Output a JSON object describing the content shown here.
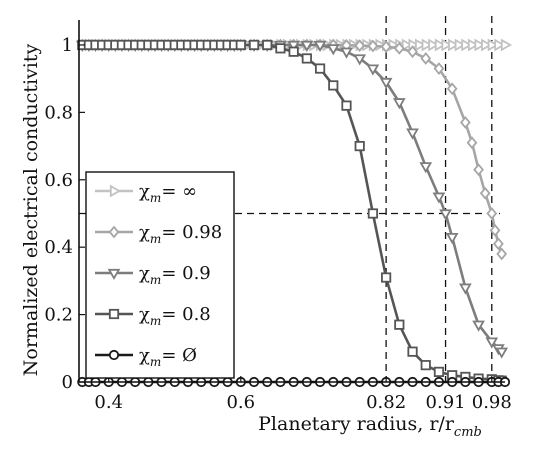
{
  "chart_data": {
    "type": "line",
    "xlabel": "Planetary radius, r/r",
    "xlabel_sub": "cmb",
    "ylabel": "Normalized electrical conductivity",
    "xlim": [
      0.355,
      1.0
    ],
    "ylim": [
      0,
      1.08
    ],
    "x_ticks": [
      {
        "value": 0.4,
        "label": "0.4"
      },
      {
        "value": 0.6,
        "label": "0.6"
      },
      {
        "value": 0.82,
        "label": "0.82"
      },
      {
        "value": 0.91,
        "label": "0.91"
      },
      {
        "value": 0.98,
        "label": "0.98"
      }
    ],
    "y_ticks": [
      {
        "value": 0,
        "label": "0"
      },
      {
        "value": 0.2,
        "label": "0.2"
      },
      {
        "value": 0.4,
        "label": "0.4"
      },
      {
        "value": 0.6,
        "label": "0.6"
      },
      {
        "value": 0.8,
        "label": "0.8"
      },
      {
        "value": 1,
        "label": "1"
      }
    ],
    "reference_lines": {
      "vertical_x": [
        0.82,
        0.91,
        0.98
      ],
      "horizontal_y": 0.5
    },
    "grid": false,
    "legend_position": "lower-left",
    "series": [
      {
        "label": "χ",
        "label_sub": "m",
        "label_value": "= ∞",
        "color": "#c2c2c2",
        "marker": "triangle-right",
        "x": [
          0.36,
          0.37,
          0.38,
          0.39,
          0.4,
          0.41,
          0.42,
          0.43,
          0.44,
          0.45,
          0.46,
          0.47,
          0.48,
          0.49,
          0.5,
          0.51,
          0.52,
          0.53,
          0.54,
          0.55,
          0.56,
          0.57,
          0.58,
          0.59,
          0.6,
          0.61,
          0.62,
          0.63,
          0.64,
          0.65,
          0.66,
          0.67,
          0.68,
          0.69,
          0.7,
          0.71,
          0.72,
          0.73,
          0.74,
          0.75,
          0.76,
          0.77,
          0.78,
          0.79,
          0.8,
          0.81,
          0.82,
          0.83,
          0.84,
          0.85,
          0.86,
          0.87,
          0.88,
          0.89,
          0.9,
          0.91,
          0.92,
          0.93,
          0.94,
          0.95,
          0.96,
          0.97,
          0.98,
          0.99,
          1.0
        ],
        "y": [
          1,
          1,
          1,
          1,
          1,
          1,
          1,
          1,
          1,
          1,
          1,
          1,
          1,
          1,
          1,
          1,
          1,
          1,
          1,
          1,
          1,
          1,
          1,
          1,
          1,
          1,
          1,
          1,
          1,
          1,
          1,
          1,
          1,
          1,
          1,
          1,
          1,
          1,
          1,
          1,
          1,
          1,
          1,
          1,
          1,
          1,
          1,
          1,
          1,
          1,
          1,
          1,
          1,
          1,
          1,
          1,
          1,
          1,
          1,
          1,
          1,
          1,
          1,
          1,
          1
        ]
      },
      {
        "label": "χ",
        "label_sub": "m",
        "label_value": "= 0.98",
        "color": "#a6a6a6",
        "marker": "diamond",
        "x": [
          0.36,
          0.37,
          0.38,
          0.39,
          0.4,
          0.41,
          0.42,
          0.43,
          0.44,
          0.45,
          0.46,
          0.47,
          0.48,
          0.49,
          0.5,
          0.51,
          0.52,
          0.53,
          0.54,
          0.55,
          0.56,
          0.57,
          0.58,
          0.59,
          0.6,
          0.62,
          0.64,
          0.66,
          0.68,
          0.7,
          0.72,
          0.74,
          0.76,
          0.78,
          0.8,
          0.82,
          0.84,
          0.86,
          0.88,
          0.9,
          0.92,
          0.94,
          0.95,
          0.96,
          0.97,
          0.98,
          0.985,
          0.99,
          0.995
        ],
        "y": [
          1,
          1,
          1,
          1,
          1,
          1,
          1,
          1,
          1,
          1,
          1,
          1,
          1,
          1,
          1,
          1,
          1,
          1,
          1,
          1,
          1,
          1,
          1,
          1,
          1,
          1,
          1,
          1,
          1,
          1,
          1,
          1,
          0.999,
          0.998,
          0.997,
          0.995,
          0.99,
          0.98,
          0.96,
          0.93,
          0.87,
          0.77,
          0.71,
          0.63,
          0.56,
          0.5,
          0.45,
          0.41,
          0.38
        ]
      },
      {
        "label": "χ",
        "label_sub": "m",
        "label_value": "= 0.9",
        "color": "#7d7d7d",
        "marker": "triangle-down",
        "x": [
          0.36,
          0.37,
          0.38,
          0.39,
          0.4,
          0.41,
          0.42,
          0.43,
          0.44,
          0.45,
          0.46,
          0.47,
          0.48,
          0.49,
          0.5,
          0.51,
          0.52,
          0.53,
          0.54,
          0.55,
          0.56,
          0.57,
          0.58,
          0.59,
          0.6,
          0.62,
          0.64,
          0.66,
          0.68,
          0.7,
          0.72,
          0.74,
          0.76,
          0.78,
          0.8,
          0.82,
          0.84,
          0.86,
          0.88,
          0.9,
          0.91,
          0.92,
          0.94,
          0.96,
          0.98,
          0.99,
          0.995
        ],
        "y": [
          1,
          1,
          1,
          1,
          1,
          1,
          1,
          1,
          1,
          1,
          1,
          1,
          1,
          1,
          1,
          1,
          1,
          1,
          1,
          1,
          1,
          1,
          1,
          1,
          1,
          1,
          1,
          1,
          1,
          1,
          1,
          0.99,
          0.98,
          0.96,
          0.93,
          0.89,
          0.83,
          0.74,
          0.64,
          0.55,
          0.5,
          0.43,
          0.28,
          0.17,
          0.12,
          0.1,
          0.09
        ]
      },
      {
        "label": "χ",
        "label_sub": "m",
        "label_value": "= 0.8",
        "color": "#555555",
        "marker": "square",
        "x": [
          0.36,
          0.37,
          0.38,
          0.39,
          0.4,
          0.41,
          0.42,
          0.43,
          0.44,
          0.45,
          0.46,
          0.47,
          0.48,
          0.49,
          0.5,
          0.51,
          0.52,
          0.53,
          0.54,
          0.55,
          0.56,
          0.57,
          0.58,
          0.59,
          0.6,
          0.62,
          0.64,
          0.66,
          0.68,
          0.7,
          0.72,
          0.74,
          0.76,
          0.78,
          0.8,
          0.82,
          0.84,
          0.86,
          0.88,
          0.9,
          0.92,
          0.94,
          0.96,
          0.98,
          0.99,
          0.995
        ],
        "y": [
          1,
          1,
          1,
          1,
          1,
          1,
          1,
          1,
          1,
          1,
          1,
          1,
          1,
          1,
          1,
          1,
          1,
          1,
          1,
          1,
          1,
          1,
          1,
          1,
          1,
          1,
          1,
          0.99,
          0.98,
          0.96,
          0.93,
          0.88,
          0.82,
          0.7,
          0.5,
          0.31,
          0.17,
          0.09,
          0.05,
          0.03,
          0.02,
          0.015,
          0.01,
          0.008,
          0.005,
          0.004
        ]
      },
      {
        "label": "χ",
        "label_sub": "m",
        "label_value": "= Ø",
        "color": "#1a1a1a",
        "marker": "circle",
        "x": [
          0.36,
          0.37,
          0.38,
          0.4,
          0.42,
          0.44,
          0.46,
          0.48,
          0.5,
          0.52,
          0.54,
          0.56,
          0.58,
          0.6,
          0.62,
          0.64,
          0.66,
          0.68,
          0.7,
          0.72,
          0.74,
          0.76,
          0.78,
          0.8,
          0.82,
          0.84,
          0.86,
          0.88,
          0.9,
          0.92,
          0.94,
          0.96,
          0.98,
          0.99,
          1.0
        ],
        "y": [
          0,
          0,
          0,
          0,
          0,
          0,
          0,
          0,
          0,
          0,
          0,
          0,
          0,
          0,
          0,
          0,
          0,
          0,
          0,
          0,
          0,
          0,
          0,
          0,
          0,
          0,
          0,
          0,
          0,
          0,
          0,
          0,
          0,
          0,
          0
        ]
      }
    ]
  }
}
